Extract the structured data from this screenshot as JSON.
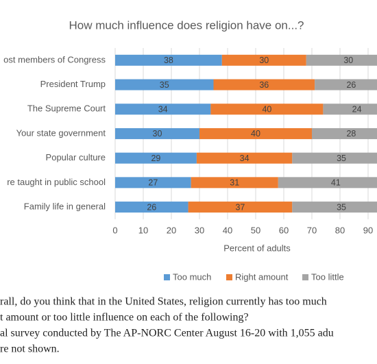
{
  "chart_data": {
    "type": "stacked_bar_horizontal",
    "title": "How much influence does religion have on...?",
    "x_label": "Percent of adults",
    "categories": [
      "ost members of Congress",
      "President Trump",
      "The Supreme Court",
      "Your state government",
      "Popular culture",
      "re taught in public school",
      "Family life in general"
    ],
    "series": [
      {
        "name": "Too much",
        "color": "#5b9bd5",
        "values": [
          38,
          35,
          34,
          30,
          29,
          27,
          26
        ]
      },
      {
        "name": "Right amount",
        "color": "#ed7d31",
        "values": [
          30,
          36,
          40,
          40,
          34,
          31,
          37
        ]
      },
      {
        "name": "Too little",
        "color": "#a5a5a5",
        "values": [
          30,
          26,
          24,
          28,
          35,
          41,
          35
        ]
      }
    ],
    "xlim": [
      0,
      100
    ],
    "xticks": [
      0,
      10,
      20,
      30,
      40,
      50,
      60,
      70,
      80,
      90
    ],
    "grid": true,
    "legend": "bottom"
  },
  "notes": [
    "rall, do you think that in the United States, religion currently has too much",
    "t amount or too little influence on each of the following?",
    "al survey conducted by The AP-NORC Center August 16-20 with 1,055 adu",
    "re not shown."
  ]
}
